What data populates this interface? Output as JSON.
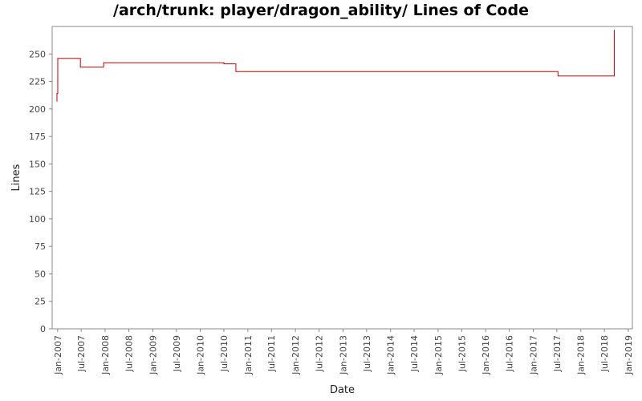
{
  "chart_data": {
    "type": "line",
    "title": "/arch/trunk: player/dragon_ability/ Lines of Code",
    "xlabel": "Date",
    "ylabel": "Lines",
    "ylim": [
      0,
      275
    ],
    "xlim": [
      "2006-11-20",
      "2019-02-01"
    ],
    "y_ticks": [
      0,
      25,
      50,
      75,
      100,
      125,
      150,
      175,
      200,
      225,
      250
    ],
    "x_ticks": [
      "Jan-2007",
      "Jul-2007",
      "Jan-2008",
      "Jul-2008",
      "Jan-2009",
      "Jul-2009",
      "Jan-2010",
      "Jul-2010",
      "Jan-2011",
      "Jul-2011",
      "Jan-2012",
      "Jul-2012",
      "Jan-2013",
      "Jul-2013",
      "Jan-2014",
      "Jul-2014",
      "Jan-2015",
      "Jul-2015",
      "Jan-2016",
      "Jul-2016",
      "Jan-2017",
      "Jul-2017",
      "Jan-2018",
      "Jul-2018",
      "Jan-2019"
    ],
    "grid": false,
    "series": [
      {
        "color": "#cc0000",
        "step": true,
        "points": [
          {
            "x": "2006-12-25",
            "y": 207
          },
          {
            "x": "2006-12-27",
            "y": 214
          },
          {
            "x": "2007-01-02",
            "y": 246
          },
          {
            "x": "2007-06-25",
            "y": 238
          },
          {
            "x": "2007-12-20",
            "y": 242
          },
          {
            "x": "2010-07-01",
            "y": 241
          },
          {
            "x": "2010-10-01",
            "y": 234
          },
          {
            "x": "2017-07-10",
            "y": 230
          },
          {
            "x": "2018-09-15",
            "y": 272
          }
        ]
      }
    ]
  }
}
